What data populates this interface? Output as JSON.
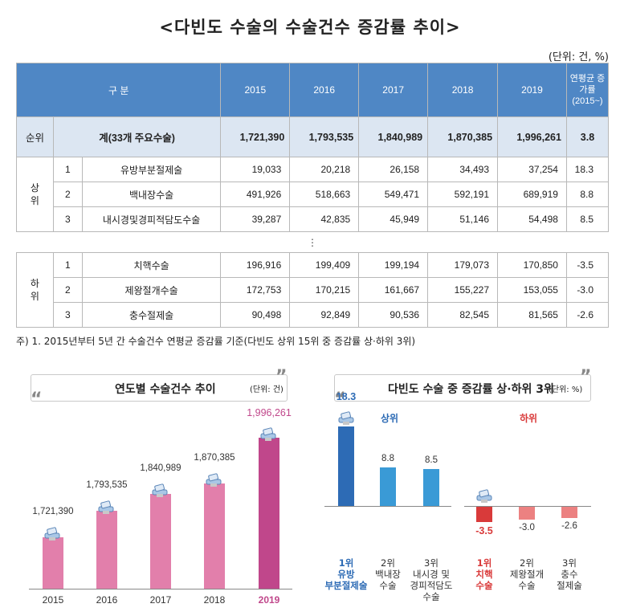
{
  "title": "<다빈도 수술의 수술건수 증감률 추이>",
  "unit_label": "(단위: 건, %)",
  "table": {
    "header": {
      "category": "구 분",
      "years": [
        "2015",
        "2016",
        "2017",
        "2018",
        "2019"
      ],
      "rate": "연평균 증가률 (2015~)"
    },
    "total": {
      "rank": "순위",
      "label": "계(33개 주요수술)",
      "values": [
        "1,721,390",
        "1,793,535",
        "1,840,989",
        "1,870,385",
        "1,996,261"
      ],
      "rate": "3.8"
    },
    "top_group": "상 위",
    "top": [
      {
        "rank": "1",
        "name": "유방부분절제술",
        "values": [
          "19,033",
          "20,218",
          "26,158",
          "34,493",
          "37,254"
        ],
        "rate": "18.3"
      },
      {
        "rank": "2",
        "name": "백내장수술",
        "values": [
          "491,926",
          "518,663",
          "549,471",
          "592,191",
          "689,919"
        ],
        "rate": "8.8"
      },
      {
        "rank": "3",
        "name": "내시경및경피적담도수술",
        "values": [
          "39,287",
          "42,835",
          "45,949",
          "51,146",
          "54,498"
        ],
        "rate": "8.5"
      }
    ],
    "ellipsis": "⋮",
    "bottom_group": "하 위",
    "bottom": [
      {
        "rank": "1",
        "name": "치핵수술",
        "values": [
          "196,916",
          "199,409",
          "199,194",
          "179,073",
          "170,850"
        ],
        "rate": "-3.5"
      },
      {
        "rank": "2",
        "name": "제왕절개수술",
        "values": [
          "172,753",
          "170,215",
          "161,667",
          "155,227",
          "153,055"
        ],
        "rate": "-3.0"
      },
      {
        "rank": "3",
        "name": "충수절제술",
        "values": [
          "90,498",
          "92,849",
          "90,536",
          "82,545",
          "81,565"
        ],
        "rate": "-2.6"
      }
    ]
  },
  "note": "주) 1. 2015년부터 5년 간 수술건수 연평균 증감률 기준(다빈도 상위 15위 중 증감률 상·하위 3위)",
  "left_chart_head": {
    "title": "연도별 수술건수 추이",
    "unit": "(단위: 건)"
  },
  "right_chart_head": {
    "title": "다빈도 수술 중 증감률 상·하위 3위",
    "unit": "(단위: %)"
  },
  "chart_data": [
    {
      "type": "bar",
      "title": "연도별 수술건수 추이",
      "unit": "(단위: 건)",
      "categories": [
        "2015",
        "2016",
        "2017",
        "2018",
        "2019"
      ],
      "values": [
        1721390,
        1793535,
        1840989,
        1870385,
        1996261
      ],
      "value_labels": [
        "1,721,390",
        "1,793,535",
        "1,840,989",
        "1,870,385",
        "1,996,261"
      ],
      "colors": [
        "#e27fab",
        "#e27fab",
        "#e27fab",
        "#e27fab",
        "#c0478b"
      ],
      "label_colors": [
        "#333333",
        "#333333",
        "#333333",
        "#333333",
        "#c0478b"
      ],
      "ylim": [
        1580000,
        2000000
      ]
    },
    {
      "type": "bar",
      "title": "다빈도 수술 중 증감률 상·하위 3위",
      "unit": "(단위: %)",
      "top_label": "상위",
      "bottom_label": "하위",
      "groups": [
        {
          "name": "상위",
          "values": [
            18.3,
            8.8,
            8.5
          ],
          "value_labels": [
            "18.3",
            "8.8",
            "8.5"
          ],
          "colors": [
            "#2d6bb5",
            "#3a9ad6",
            "#3a9ad6"
          ],
          "label_colors": [
            "#2d6bb5",
            "#333333",
            "#333333"
          ],
          "labels": [
            [
              "1위",
              "유방",
              "부분절제술"
            ],
            [
              "2위",
              "백내장",
              "수술"
            ],
            [
              "3위",
              "내시경 및",
              "경피적담도",
              "수술"
            ]
          ]
        },
        {
          "name": "하위",
          "values": [
            -3.5,
            -3.0,
            -2.6
          ],
          "value_labels": [
            "-3.5",
            "-3.0",
            "-2.6"
          ],
          "colors": [
            "#d93a3a",
            "#ec8181",
            "#ec8181"
          ],
          "label_colors": [
            "#d93a3a",
            "#333333",
            "#333333"
          ],
          "labels": [
            [
              "1위",
              "치핵",
              "수술"
            ],
            [
              "2위",
              "제왕절개",
              "수술"
            ],
            [
              "3위",
              "충수",
              "절제술"
            ]
          ]
        }
      ],
      "ylim": [
        -4,
        20
      ]
    }
  ]
}
